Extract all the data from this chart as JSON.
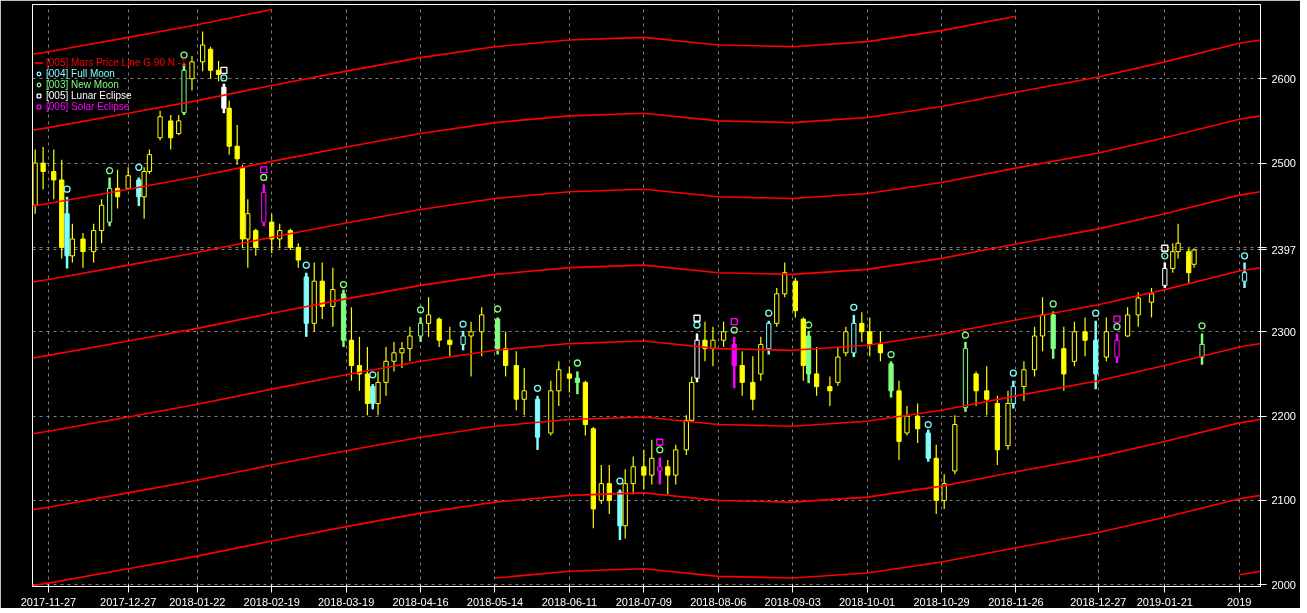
{
  "chart_data": {
    "type": "candlestick",
    "x": [
      "2017-11-22",
      "2017-11-25",
      "2017-11-29",
      "2017-12-02",
      "2017-12-04",
      "2017-12-06",
      "2017-12-10",
      "2017-12-14",
      "2017-12-17",
      "2017-12-20",
      "2017-12-23",
      "2017-12-27",
      "2017-12-31",
      "2018-01-02",
      "2018-01-04",
      "2018-01-08",
      "2018-01-12",
      "2018-01-15",
      "2018-01-17",
      "2018-01-20",
      "2018-01-24",
      "2018-01-27",
      "2018-01-30",
      "2018-02-01",
      "2018-02-03",
      "2018-02-06",
      "2018-02-08",
      "2018-02-10",
      "2018-02-13",
      "2018-02-16",
      "2018-02-19",
      "2018-02-22",
      "2018-02-26",
      "2018-03-01",
      "2018-03-04",
      "2018-03-07",
      "2018-03-10",
      "2018-03-14",
      "2018-03-18",
      "2018-03-21",
      "2018-03-24",
      "2018-03-27",
      "2018-03-29",
      "2018-03-31",
      "2018-04-03",
      "2018-04-06",
      "2018-04-09",
      "2018-04-12",
      "2018-04-16",
      "2018-04-19",
      "2018-04-23",
      "2018-04-27",
      "2018-05-02",
      "2018-05-05",
      "2018-05-09",
      "2018-05-15",
      "2018-05-18",
      "2018-05-22",
      "2018-05-25",
      "2018-05-30",
      "2018-06-04",
      "2018-06-07",
      "2018-06-11",
      "2018-06-14",
      "2018-06-17",
      "2018-06-20",
      "2018-06-23",
      "2018-06-26",
      "2018-06-30",
      "2018-07-02",
      "2018-07-05",
      "2018-07-09",
      "2018-07-12",
      "2018-07-15",
      "2018-07-18",
      "2018-07-21",
      "2018-07-25",
      "2018-07-27",
      "2018-07-29",
      "2018-08-01",
      "2018-08-04",
      "2018-08-08",
      "2018-08-12",
      "2018-08-15",
      "2018-08-19",
      "2018-08-22",
      "2018-08-25",
      "2018-08-28",
      "2018-08-31",
      "2018-09-04",
      "2018-09-07",
      "2018-09-09",
      "2018-09-12",
      "2018-09-17",
      "2018-09-20",
      "2018-09-23",
      "2018-09-26",
      "2018-09-29",
      "2018-10-02",
      "2018-10-06",
      "2018-10-10",
      "2018-10-13",
      "2018-10-16",
      "2018-10-20",
      "2018-10-24",
      "2018-10-27",
      "2018-10-30",
      "2018-11-03",
      "2018-11-07",
      "2018-11-11",
      "2018-11-15",
      "2018-11-19",
      "2018-11-23",
      "2018-11-25",
      "2018-11-29",
      "2018-12-03",
      "2018-12-06",
      "2018-12-10",
      "2018-12-14",
      "2018-12-18",
      "2018-12-22",
      "2018-12-26",
      "2018-12-30",
      "2019-01-03",
      "2019-01-07",
      "2019-01-11",
      "2019-01-16",
      "2019-01-21",
      "2019-01-24",
      "2019-01-26",
      "2019-01-30",
      "2019-02-01",
      "2019-02-04",
      "2019-02-20"
    ],
    "ohlc": [
      [
        2450,
        2516,
        2440,
        2500
      ],
      [
        2500,
        2519,
        2469,
        2490
      ],
      [
        2490,
        2516,
        2457,
        2480
      ],
      [
        2480,
        2504,
        2387,
        2400
      ],
      [
        2440,
        2460,
        2375,
        2390
      ],
      [
        2390,
        2428,
        2382,
        2410
      ],
      [
        2410,
        2417,
        2376,
        2395
      ],
      [
        2395,
        2428,
        2382,
        2420
      ],
      [
        2420,
        2457,
        2405,
        2450
      ],
      [
        2430,
        2483,
        2425,
        2470
      ],
      [
        2470,
        2492,
        2446,
        2460
      ],
      [
        2470,
        2495,
        2469,
        2485
      ],
      [
        2480,
        2483,
        2449,
        2460
      ],
      [
        2460,
        2495,
        2434,
        2490
      ],
      [
        2490,
        2516,
        2487,
        2510
      ],
      [
        2530,
        2562,
        2527,
        2555
      ],
      [
        2550,
        2557,
        2516,
        2530
      ],
      [
        2535,
        2557,
        2533,
        2550
      ],
      [
        2560,
        2618,
        2557,
        2610
      ],
      [
        2600,
        2627,
        2586,
        2620
      ],
      [
        2620,
        2656,
        2609,
        2640
      ],
      [
        2635,
        2638,
        2600,
        2610
      ],
      [
        2610,
        2621,
        2597,
        2605
      ],
      [
        2590,
        2594,
        2559,
        2565
      ],
      [
        2565,
        2574,
        2510,
        2520
      ],
      [
        2520,
        2545,
        2498,
        2505
      ],
      [
        2495,
        2498,
        2399,
        2410
      ],
      [
        2410,
        2457,
        2376,
        2440
      ],
      [
        2420,
        2422,
        2390,
        2400
      ],
      [
        2430,
        2475,
        2425,
        2465
      ],
      [
        2430,
        2440,
        2393,
        2410
      ],
      [
        2410,
        2428,
        2399,
        2420
      ],
      [
        2420,
        2422,
        2397,
        2400
      ],
      [
        2400,
        2405,
        2376,
        2385
      ],
      [
        2365,
        2370,
        2294,
        2310
      ],
      [
        2310,
        2382,
        2300,
        2360
      ],
      [
        2360,
        2382,
        2315,
        2330
      ],
      [
        2330,
        2376,
        2306,
        2350
      ],
      [
        2345,
        2350,
        2282,
        2290
      ],
      [
        2290,
        2329,
        2242,
        2260
      ],
      [
        2260,
        2294,
        2230,
        2250
      ],
      [
        2250,
        2282,
        2201,
        2215
      ],
      [
        2235,
        2238,
        2208,
        2215
      ],
      [
        2215,
        2253,
        2201,
        2240
      ],
      [
        2240,
        2282,
        2224,
        2265
      ],
      [
        2265,
        2288,
        2253,
        2275
      ],
      [
        2275,
        2288,
        2257,
        2280
      ],
      [
        2280,
        2306,
        2265,
        2295
      ],
      [
        2295,
        2317,
        2288,
        2310
      ],
      [
        2310,
        2341,
        2294,
        2320
      ],
      [
        2315,
        2317,
        2282,
        2290
      ],
      [
        2290,
        2306,
        2271,
        2285
      ],
      [
        2285,
        2301,
        2278,
        2295
      ],
      [
        2295,
        2312,
        2247,
        2300
      ],
      [
        2300,
        2329,
        2271,
        2320
      ],
      [
        2315,
        2317,
        2273,
        2280
      ],
      [
        2280,
        2300,
        2247,
        2260
      ],
      [
        2260,
        2277,
        2207,
        2220
      ],
      [
        2220,
        2257,
        2201,
        2230
      ],
      [
        2220,
        2224,
        2160,
        2175
      ],
      [
        2180,
        2242,
        2177,
        2230
      ],
      [
        2230,
        2265,
        2212,
        2255
      ],
      [
        2250,
        2259,
        2228,
        2245
      ],
      [
        2245,
        2253,
        2226,
        2240
      ],
      [
        2240,
        2242,
        2177,
        2190
      ],
      [
        2185,
        2187,
        2067,
        2090
      ],
      [
        2100,
        2142,
        2096,
        2120
      ],
      [
        2120,
        2142,
        2084,
        2100
      ],
      [
        2110,
        2113,
        2053,
        2070
      ],
      [
        2070,
        2137,
        2055,
        2120
      ],
      [
        2120,
        2152,
        2107,
        2140
      ],
      [
        2140,
        2160,
        2113,
        2130
      ],
      [
        2130,
        2172,
        2119,
        2150
      ],
      [
        2135,
        2151,
        2119,
        2140
      ],
      [
        2140,
        2148,
        2107,
        2130
      ],
      [
        2130,
        2166,
        2119,
        2160
      ],
      [
        2160,
        2201,
        2154,
        2195
      ],
      [
        2195,
        2247,
        2195,
        2240
      ],
      [
        2245,
        2298,
        2240,
        2290
      ],
      [
        2290,
        2312,
        2265,
        2280
      ],
      [
        2280,
        2306,
        2259,
        2290
      ],
      [
        2290,
        2312,
        2282,
        2300
      ],
      [
        2285,
        2294,
        2233,
        2260
      ],
      [
        2260,
        2277,
        2224,
        2240
      ],
      [
        2240,
        2271,
        2207,
        2220
      ],
      [
        2250,
        2294,
        2242,
        2285
      ],
      [
        2280,
        2313,
        2273,
        2310
      ],
      [
        2310,
        2352,
        2306,
        2345
      ],
      [
        2345,
        2382,
        2341,
        2370
      ],
      [
        2360,
        2364,
        2317,
        2325
      ],
      [
        2315,
        2317,
        2242,
        2260
      ],
      [
        2295,
        2301,
        2239,
        2250
      ],
      [
        2250,
        2282,
        2224,
        2235
      ],
      [
        2235,
        2247,
        2212,
        2230
      ],
      [
        2240,
        2282,
        2236,
        2270
      ],
      [
        2275,
        2306,
        2271,
        2300
      ],
      [
        2275,
        2320,
        2270,
        2310
      ],
      [
        2310,
        2323,
        2288,
        2300
      ],
      [
        2300,
        2317,
        2271,
        2285
      ],
      [
        2285,
        2300,
        2265,
        2275
      ],
      [
        2262,
        2265,
        2222,
        2230
      ],
      [
        2230,
        2242,
        2148,
        2170
      ],
      [
        2180,
        2212,
        2177,
        2200
      ],
      [
        2200,
        2215,
        2168,
        2185
      ],
      [
        2180,
        2184,
        2146,
        2150
      ],
      [
        2150,
        2166,
        2084,
        2100
      ],
      [
        2100,
        2131,
        2090,
        2120
      ],
      [
        2135,
        2201,
        2131,
        2190
      ],
      [
        2210,
        2288,
        2205,
        2280
      ],
      [
        2250,
        2253,
        2212,
        2230
      ],
      [
        2230,
        2259,
        2201,
        2220
      ],
      [
        2215,
        2224,
        2142,
        2160
      ],
      [
        2165,
        2230,
        2160,
        2215
      ],
      [
        2215,
        2242,
        2209,
        2235
      ],
      [
        2235,
        2265,
        2218,
        2255
      ],
      [
        2255,
        2306,
        2247,
        2295
      ],
      [
        2295,
        2341,
        2277,
        2320
      ],
      [
        2320,
        2324,
        2268,
        2280
      ],
      [
        2280,
        2306,
        2230,
        2250
      ],
      [
        2265,
        2312,
        2259,
        2300
      ],
      [
        2300,
        2317,
        2271,
        2290
      ],
      [
        2290,
        2313,
        2232,
        2250
      ],
      [
        2270,
        2317,
        2265,
        2300
      ],
      [
        2270,
        2298,
        2263,
        2290
      ],
      [
        2295,
        2329,
        2294,
        2320
      ],
      [
        2320,
        2347,
        2306,
        2340
      ],
      [
        2335,
        2352,
        2317,
        2345
      ],
      [
        2355,
        2382,
        2352,
        2375
      ],
      [
        2375,
        2405,
        2370,
        2395
      ],
      [
        2395,
        2428,
        2387,
        2405
      ],
      [
        2395,
        2399,
        2358,
        2370
      ],
      [
        2380,
        2399,
        2376,
        2397
      ],
      [
        2270,
        2298,
        2261,
        2285
      ],
      [
        2360,
        2382,
        2352,
        2370
      ]
    ],
    "color": "#ffff00",
    "colors": [
      "#ffff00",
      "#ffff00",
      "#ffff00",
      "#ffff00",
      "#80ffff",
      "#ffff00",
      "#ffff00",
      "#ffff00",
      "#ffff00",
      "#80ff80",
      "#ffff00",
      "#ffff00",
      "#80ffff",
      "#ffff00",
      "#ffff00",
      "#ffff00",
      "#ffff00",
      "#ffff00",
      "#80ff80",
      "#ffff00",
      "#ffff00",
      "#ffff00",
      "#ffff00",
      "#ffffff",
      "#ffff00",
      "#ffff00",
      "#ffff00",
      "#ffff00",
      "#ffff00",
      "#ff00ff",
      "#ffff00",
      "#ffff00",
      "#ffff00",
      "#ffff00",
      "#80ffff",
      "#ffff00",
      "#ffff00",
      "#ffff00",
      "#80ff80",
      "#ffff00",
      "#ffff00",
      "#ffff00",
      "#80ffff",
      "#ffff00",
      "#ffff00",
      "#ffff00",
      "#ffff00",
      "#ffff00",
      "#80ff80",
      "#ffff00",
      "#ffff00",
      "#ffff00",
      "#80ffff",
      "#ffff00",
      "#ffff00",
      "#80ff80",
      "#ffff00",
      "#ffff00",
      "#ffff00",
      "#80ffff",
      "#ffff00",
      "#ffff00",
      "#ffff00",
      "#80ff80",
      "#ffff00",
      "#ffff00",
      "#ffff00",
      "#ffff00",
      "#80ffff",
      "#ffff00",
      "#ffff00",
      "#ffff00",
      "#ffff00",
      "#ff00ff",
      "#ffff00",
      "#ffff00",
      "#ffff00",
      "#ffff00",
      "#ffffff",
      "#ffff00",
      "#ffff00",
      "#ffff00",
      "#ff00ff",
      "#ffff00",
      "#ffff00",
      "#ffff00",
      "#80ffff",
      "#ffff00",
      "#ffff00",
      "#ffff00",
      "#ffff00",
      "#80ff80",
      "#ffff00",
      "#ffff00",
      "#ffff00",
      "#ffff00",
      "#80ffff",
      "#ffff00",
      "#ffff00",
      "#ffff00",
      "#80ff80",
      "#ffff00",
      "#ffff00",
      "#ffff00",
      "#80ffff",
      "#ffff00",
      "#ffff00",
      "#ffff00",
      "#80ff80",
      "#ffff00",
      "#ffff00",
      "#ffff00",
      "#ffff00",
      "#80ffff",
      "#ffff00",
      "#ffff00",
      "#ffff00",
      "#80ff80",
      "#ffff00",
      "#ffff00",
      "#ffff00",
      "#80ffff",
      "#ffff00",
      "#ff00ff",
      "#ffff00",
      "#ffff00",
      "#ffff00",
      "#ffffff",
      "#ffff00",
      "#ffff00",
      "#ffff00",
      "#ffff00",
      "#80ff80",
      "#80ffff"
    ],
    "series": [
      {
        "type": "line",
        "name": "[005] Mars Price Line G 90 N -1",
        "color": "#ff0000",
        "x": [
          "2017-11-21",
          "2017-11-27",
          "2017-12-27",
          "2018-01-22",
          "2018-02-19",
          "2018-03-19",
          "2018-04-16",
          "2018-05-14",
          "2018-06-11",
          "2018-07-09",
          "2018-08-06",
          "2018-09-03",
          "2018-10-01",
          "2018-10-29",
          "2018-11-26",
          "2018-12-27",
          "2019-01-21",
          "2019-02-18",
          "2019-02-26"
        ],
        "values": [
          2359,
          2362,
          2379,
          2394,
          2412,
          2429,
          2445,
          2458,
          2466,
          2469,
          2460,
          2458,
          2464,
          2477,
          2494,
          2512,
          2530,
          2552,
          2556
        ]
      },
      {
        "type": "line",
        "color": "#ff0000",
        "x": [
          "2019-02-18",
          "2019-02-26"
        ],
        "values": [
          2012,
          2016
        ]
      },
      {
        "type": "line",
        "color": "#ff0000",
        "x": [
          "2018-05-14",
          "2018-06-11",
          "2018-07-09",
          "2018-08-06",
          "2018-09-03",
          "2018-10-01",
          "2018-10-29",
          "2018-11-26",
          "2018-12-27",
          "2019-01-21",
          "2019-02-18",
          "2019-02-26"
        ],
        "values": [
          2008,
          2016,
          2019,
          2010,
          2008,
          2014,
          2027,
          2044,
          2062,
          2080,
          2102,
          2106
        ]
      },
      {
        "type": "line",
        "color": "#ff0000",
        "x": [
          "2017-11-21",
          "2017-11-27",
          "2017-12-27",
          "2018-01-22",
          "2018-02-19",
          "2018-03-19",
          "2018-04-16",
          "2018-05-14",
          "2018-06-11",
          "2018-07-09",
          "2018-08-06",
          "2018-09-03",
          "2018-10-01",
          "2018-10-29",
          "2018-11-26",
          "2018-12-27",
          "2019-01-21",
          "2019-02-18",
          "2019-02-26"
        ],
        "values": [
          1999,
          2002,
          2019,
          2034,
          2052,
          2069,
          2085,
          2098,
          2106,
          2109,
          2100,
          2098,
          2104,
          2117,
          2134,
          2152,
          2170,
          2192,
          2196
        ]
      },
      {
        "type": "line",
        "color": "#ff0000",
        "x": [
          "2017-11-21",
          "2017-11-27",
          "2017-12-27",
          "2018-01-22",
          "2018-02-19",
          "2018-03-19",
          "2018-04-16",
          "2018-05-14",
          "2018-06-11",
          "2018-07-09",
          "2018-08-06",
          "2018-09-03",
          "2018-10-01",
          "2018-10-29",
          "2018-11-26",
          "2018-12-27",
          "2019-01-21",
          "2019-02-18",
          "2019-02-26"
        ],
        "values": [
          2089,
          2092,
          2109,
          2124,
          2142,
          2159,
          2175,
          2188,
          2196,
          2199,
          2190,
          2188,
          2194,
          2207,
          2224,
          2242,
          2260,
          2282,
          2286
        ]
      },
      {
        "type": "line",
        "color": "#ff0000",
        "x": [
          "2017-11-21",
          "2017-11-27",
          "2017-12-27",
          "2018-01-22",
          "2018-02-19",
          "2018-03-19",
          "2018-04-16",
          "2018-05-14",
          "2018-06-11",
          "2018-07-09",
          "2018-08-06",
          "2018-09-03",
          "2018-10-01",
          "2018-10-29",
          "2018-11-26",
          "2018-12-27",
          "2019-01-21",
          "2019-02-18",
          "2019-02-26"
        ],
        "values": [
          2179,
          2182,
          2199,
          2214,
          2232,
          2249,
          2265,
          2278,
          2286,
          2289,
          2280,
          2278,
          2284,
          2297,
          2314,
          2332,
          2350,
          2372,
          2376
        ]
      },
      {
        "type": "line",
        "color": "#ff0000",
        "x": [
          "2017-11-21",
          "2017-11-27",
          "2017-12-27",
          "2018-01-22",
          "2018-02-19",
          "2018-03-19",
          "2018-04-16",
          "2018-05-14",
          "2018-06-11",
          "2018-07-09",
          "2018-08-06",
          "2018-09-03",
          "2018-10-01",
          "2018-10-29",
          "2018-11-26",
          "2018-12-27",
          "2019-01-21",
          "2019-02-18",
          "2019-02-26"
        ],
        "values": [
          2269,
          2272,
          2289,
          2304,
          2322,
          2339,
          2355,
          2368,
          2376,
          2379,
          2370,
          2368,
          2374,
          2387,
          2404,
          2422,
          2440,
          2462,
          2466
        ]
      },
      {
        "type": "line",
        "color": "#ff0000",
        "x": [
          "2017-11-21",
          "2017-11-27",
          "2017-12-27",
          "2018-01-22",
          "2018-02-19",
          "2018-03-19",
          "2018-04-16",
          "2018-05-14",
          "2018-06-11",
          "2018-07-09",
          "2018-08-06",
          "2018-09-03",
          "2018-10-01",
          "2018-10-29",
          "2018-11-26",
          "2018-12-27",
          "2019-01-21",
          "2019-02-18",
          "2019-02-26"
        ],
        "values": [
          2449,
          2452,
          2469,
          2484,
          2502,
          2519,
          2535,
          2548,
          2556,
          2559,
          2550,
          2548,
          2554,
          2567,
          2584,
          2602,
          2620,
          2642,
          2646
        ]
      },
      {
        "type": "line",
        "color": "#ff0000",
        "x": [
          "2017-11-21",
          "2017-11-27",
          "2017-12-27",
          "2018-01-22",
          "2018-02-19",
          "2018-03-19",
          "2018-04-16",
          "2018-05-14",
          "2018-06-11",
          "2018-07-09",
          "2018-08-06",
          "2018-09-03",
          "2018-10-01",
          "2018-10-29",
          "2018-11-26"
        ],
        "values": [
          2539,
          2542,
          2559,
          2574,
          2592,
          2609,
          2625,
          2638,
          2646,
          2649,
          2640,
          2638,
          2644,
          2657,
          2674
        ]
      },
      {
        "type": "line",
        "color": "#ff0000",
        "x": [
          "2017-11-21",
          "2017-11-27",
          "2017-12-27",
          "2018-01-22",
          "2018-02-19"
        ],
        "values": [
          2629,
          2632,
          2649,
          2664,
          2682
        ]
      },
      {
        "type": "scatter",
        "name": "[004] Full Moon",
        "color": "#80ffff",
        "marker": "circle",
        "x": [
          "2017-12-04",
          "2017-12-31",
          "2018-02-01",
          "2018-03-04",
          "2018-03-29",
          "2018-05-02",
          "2018-05-30",
          "2018-06-30",
          "2018-07-29",
          "2018-08-25",
          "2018-09-26",
          "2018-10-24",
          "2018-11-25",
          "2018-12-26",
          "2019-01-21",
          "2019-02-20"
        ],
        "values": [
          2469,
          2495,
          2601,
          2379,
          2249,
          2309,
          2233,
          2123,
          2308,
          2322,
          2329,
          2190,
          2251,
          2322,
          2390,
          2390
        ]
      },
      {
        "type": "scatter",
        "name": "[003] New Moon",
        "color": "#80ff80",
        "marker": "circle",
        "x": [
          "2017-12-20",
          "2018-01-17",
          "2018-02-16",
          "2018-03-18",
          "2018-04-16",
          "2018-05-15",
          "2018-06-14",
          "2018-07-15",
          "2018-08-12",
          "2018-09-09",
          "2018-10-10",
          "2018-11-07",
          "2018-12-10",
          "2019-01-03",
          "2019-02-04"
        ],
        "values": [
          2491,
          2628,
          2483,
          2356,
          2326,
          2327,
          2263,
          2160,
          2302,
          2308,
          2273,
          2296,
          2333,
          2306,
          2307
        ]
      },
      {
        "type": "scatter",
        "name": "[005] Lunar Eclipse",
        "color": "#ffffff",
        "marker": "square",
        "x": [
          "2018-02-01",
          "2018-07-29",
          "2019-01-21"
        ],
        "values": [
          2610,
          2316,
          2399
        ]
      },
      {
        "type": "scatter",
        "name": "[006] Solar Eclipse",
        "color": "#ff00ff",
        "marker": "square",
        "x": [
          "2018-02-16",
          "2018-07-15",
          "2018-08-12",
          "2019-01-03"
        ],
        "values": [
          2492,
          2169,
          2312,
          2315
        ]
      }
    ],
    "xlim": [
      "2017-11-21",
      "2019-02-26"
    ],
    "xticks": [
      "2017-11-27",
      "2017-12-27",
      "2018-01-22",
      "2018-02-19",
      "2018-03-19",
      "2018-04-16",
      "2018-05-14",
      "2018-06-11",
      "2018-07-09",
      "2018-08-06",
      "2018-09-03",
      "2018-10-01",
      "2018-10-29",
      "2018-11-26",
      "2018-12-27",
      "2019-01-21",
      {
        "value": "2019-02-18",
        "label": "2019"
      }
    ],
    "ylim": [
      1998,
      2688
    ],
    "yticks": [
      2000,
      2100,
      2200,
      2300,
      2397,
      {
        "value": 2400,
        "label": null
      },
      2500,
      2600
    ],
    "grid": true,
    "legend": "top left"
  }
}
